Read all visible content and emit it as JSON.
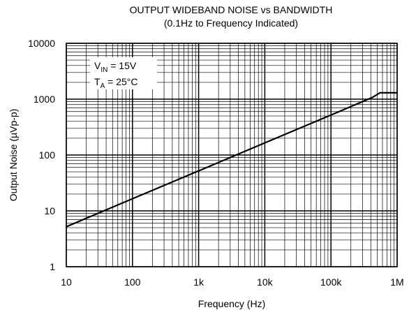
{
  "chart_data": {
    "type": "line",
    "title": "OUTPUT WIDEBAND NOISE vs BANDWIDTH",
    "subtitle": "(0.1Hz to Frequency Indicated)",
    "xlabel": "Frequency (Hz)",
    "ylabel": "Output Noise (µVp-p)",
    "x_scale": "log",
    "y_scale": "log",
    "xlim": [
      10,
      1000000
    ],
    "ylim": [
      1,
      10000
    ],
    "x_tick_labels": [
      "10",
      "100",
      "1k",
      "10k",
      "100k",
      "1M"
    ],
    "x_tick_values": [
      10,
      100,
      1000,
      10000,
      100000,
      1000000
    ],
    "y_tick_labels": [
      "1",
      "10",
      "100",
      "1000",
      "10000"
    ],
    "y_tick_values": [
      1,
      10,
      100,
      1000,
      10000
    ],
    "grid": true,
    "series": [
      {
        "x": [
          10,
          100,
          1000,
          10000,
          100000,
          420000,
          550000,
          1000000
        ],
        "y": [
          5.2,
          16.5,
          52,
          165,
          520,
          1070,
          1300,
          1300
        ]
      }
    ],
    "annotations": {
      "line1_main": "V",
      "line1_sub": "IN",
      "line1_rest": " = 15V",
      "line2_main": "T",
      "line2_sub": "A",
      "line2_rest": " = 25°C"
    }
  }
}
